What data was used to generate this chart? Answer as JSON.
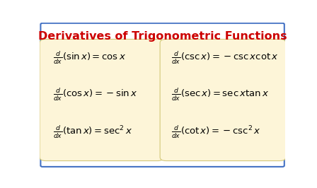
{
  "title": "Derivatives of Trigonometric Functions",
  "title_color": "#cc0000",
  "title_fontsize": 11.5,
  "bg_color": "#ffffff",
  "box_color": "#fdf5d8",
  "border_color": "#4472c4",
  "box_edge_color": "#d4c87a",
  "formulas_left": [
    "\\frac{d}{dx}(\\sin x) = \\cos x",
    "\\frac{d}{dx}(\\cos x) = -\\sin x",
    "\\frac{d}{dx}(\\tan x) = \\sec^2 x"
  ],
  "formulas_right": [
    "\\frac{d}{dx}(\\csc x) = -\\csc x \\cot x",
    "\\frac{d}{dx}(\\sec x) = \\sec x \\tan x",
    "\\frac{d}{dx}(\\cot x) = -\\csc^2 x"
  ],
  "formula_fontsize": 9.5,
  "figsize": [
    4.48,
    2.66
  ],
  "dpi": 100
}
